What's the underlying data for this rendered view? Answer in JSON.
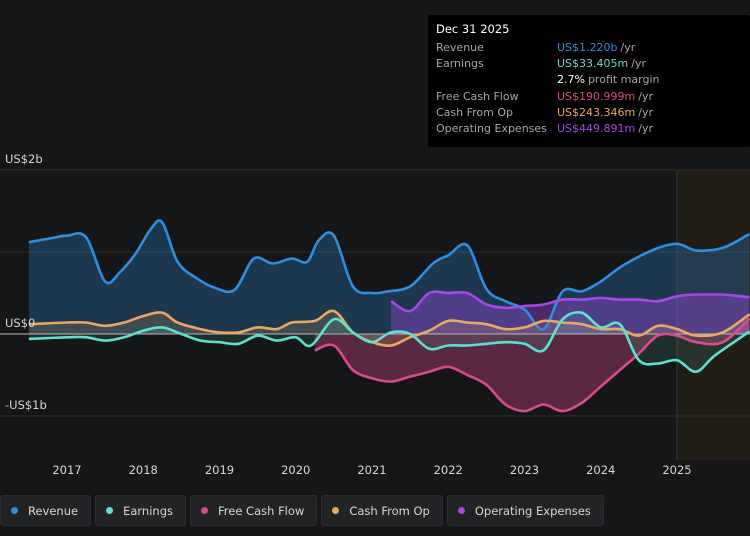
{
  "colors": {
    "revenue": "#2e8fe0",
    "earnings": "#5ee0cf",
    "fcf": "#d94a8e",
    "cfo": "#e8a864",
    "opex": "#a647e8",
    "background": "#151617",
    "forecast_band": "#2a2418"
  },
  "tooltip": {
    "date": "Dec 31 2025",
    "rows": [
      {
        "label": "Revenue",
        "value": "US$1.220b",
        "unit": "/yr",
        "color": "#2e8fe0"
      },
      {
        "label": "Earnings",
        "value": "US$33.405m",
        "unit": "/yr",
        "color": "#5ee0cf"
      },
      {
        "label": "",
        "value": "2.7%",
        "unit": "profit margin",
        "color": "#ffffff"
      },
      {
        "label": "Free Cash Flow",
        "value": "US$190.999m",
        "unit": "/yr",
        "color": "#d94a8e"
      },
      {
        "label": "Cash From Op",
        "value": "US$243.346m",
        "unit": "/yr",
        "color": "#e8a864"
      },
      {
        "label": "Operating Expenses",
        "value": "US$449.891m",
        "unit": "/yr",
        "color": "#a647e8"
      }
    ]
  },
  "legend": [
    {
      "label": "Revenue",
      "color": "#2e8fe0"
    },
    {
      "label": "Earnings",
      "color": "#5ee0cf"
    },
    {
      "label": "Free Cash Flow",
      "color": "#d94a8e"
    },
    {
      "label": "Cash From Op",
      "color": "#e8a864"
    },
    {
      "label": "Operating Expenses",
      "color": "#a647e8"
    }
  ],
  "chart_data": {
    "type": "area",
    "title": "",
    "xlabel": "",
    "ylabel": "",
    "y_tick_labels": [
      "US$2b",
      "US$0",
      "-US$1b"
    ],
    "y_ticks": [
      2,
      0,
      -1
    ],
    "x_tick_labels": [
      "2017",
      "2018",
      "2019",
      "2020",
      "2021",
      "2022",
      "2023",
      "2024",
      "2025"
    ],
    "x_ticks": [
      2017,
      2018,
      2019,
      2020,
      2021,
      2022,
      2023,
      2024,
      2025
    ],
    "xlim": [
      2016.5,
      2025.95
    ],
    "ylim": [
      -1.0,
      1.6
    ],
    "forecast_start": 2025.0,
    "grid": true,
    "legend_position": "bottom-left",
    "units": "US$ billions",
    "series": [
      {
        "name": "Revenue",
        "color": "#2e8fe0",
        "x": [
          2016.5,
          2016.8,
          2017.0,
          2017.25,
          2017.5,
          2017.7,
          2017.9,
          2018.1,
          2018.25,
          2018.45,
          2018.7,
          2018.95,
          2019.2,
          2019.45,
          2019.7,
          2019.95,
          2020.15,
          2020.3,
          2020.5,
          2020.75,
          2021.0,
          2021.2,
          2021.5,
          2021.8,
          2022.0,
          2022.25,
          2022.5,
          2022.75,
          2023.0,
          2023.25,
          2023.5,
          2023.75,
          2024.0,
          2024.3,
          2024.7,
          2025.0,
          2025.25,
          2025.6,
          2025.95
        ],
        "y": [
          1.12,
          1.17,
          1.2,
          1.18,
          0.64,
          0.76,
          0.98,
          1.28,
          1.36,
          0.88,
          0.68,
          0.56,
          0.54,
          0.92,
          0.86,
          0.92,
          0.88,
          1.14,
          1.2,
          0.58,
          0.5,
          0.52,
          0.58,
          0.86,
          0.96,
          1.08,
          0.55,
          0.4,
          0.3,
          0.06,
          0.52,
          0.52,
          0.64,
          0.84,
          1.03,
          1.1,
          1.02,
          1.05,
          1.22
        ]
      },
      {
        "name": "Earnings",
        "color": "#5ee0cf",
        "x": [
          2016.5,
          2017.0,
          2017.25,
          2017.5,
          2017.75,
          2018.0,
          2018.25,
          2018.5,
          2018.75,
          2019.0,
          2019.25,
          2019.5,
          2019.75,
          2020.0,
          2020.2,
          2020.5,
          2020.75,
          2021.0,
          2021.25,
          2021.5,
          2021.75,
          2022.0,
          2022.25,
          2022.5,
          2022.75,
          2023.0,
          2023.25,
          2023.5,
          2023.75,
          2024.0,
          2024.25,
          2024.5,
          2024.75,
          2025.0,
          2025.25,
          2025.5,
          2025.95
        ],
        "y": [
          -0.06,
          -0.04,
          -0.04,
          -0.08,
          -0.04,
          0.04,
          0.08,
          0.0,
          -0.08,
          -0.1,
          -0.12,
          -0.02,
          -0.08,
          -0.04,
          -0.14,
          0.18,
          0.02,
          -0.1,
          0.02,
          0.0,
          -0.18,
          -0.14,
          -0.14,
          -0.12,
          -0.1,
          -0.12,
          -0.2,
          0.18,
          0.26,
          0.08,
          0.12,
          -0.32,
          -0.36,
          -0.32,
          -0.46,
          -0.26,
          0.03
        ]
      },
      {
        "name": "Free Cash Flow",
        "color": "#d94a8e",
        "x": [
          2020.25,
          2020.5,
          2020.75,
          2021.0,
          2021.25,
          2021.5,
          2021.75,
          2022.0,
          2022.25,
          2022.5,
          2022.75,
          2023.0,
          2023.25,
          2023.5,
          2023.75,
          2024.0,
          2024.25,
          2024.5,
          2024.75,
          2025.0,
          2025.25,
          2025.6,
          2025.95
        ],
        "y": [
          -0.2,
          -0.14,
          -0.44,
          -0.54,
          -0.58,
          -0.52,
          -0.46,
          -0.4,
          -0.5,
          -0.62,
          -0.86,
          -0.94,
          -0.86,
          -0.94,
          -0.84,
          -0.64,
          -0.44,
          -0.24,
          -0.02,
          -0.02,
          -0.1,
          -0.1,
          0.19
        ]
      },
      {
        "name": "Cash From Op",
        "color": "#e8a864",
        "x": [
          2016.5,
          2017.0,
          2017.25,
          2017.5,
          2017.75,
          2018.0,
          2018.25,
          2018.45,
          2018.75,
          2019.0,
          2019.25,
          2019.5,
          2019.75,
          2019.95,
          2020.25,
          2020.5,
          2020.75,
          2021.0,
          2021.25,
          2021.5,
          2021.75,
          2022.0,
          2022.25,
          2022.5,
          2022.75,
          2023.0,
          2023.25,
          2023.5,
          2023.75,
          2024.0,
          2024.25,
          2024.5,
          2024.75,
          2025.0,
          2025.25,
          2025.6,
          2025.95
        ],
        "y": [
          0.12,
          0.14,
          0.14,
          0.1,
          0.14,
          0.22,
          0.26,
          0.14,
          0.06,
          0.02,
          0.02,
          0.08,
          0.06,
          0.14,
          0.16,
          0.28,
          0.02,
          -0.1,
          -0.14,
          -0.04,
          0.04,
          0.16,
          0.14,
          0.12,
          0.06,
          0.08,
          0.16,
          0.14,
          0.12,
          0.06,
          0.06,
          -0.02,
          0.1,
          0.06,
          -0.02,
          0.02,
          0.24
        ]
      },
      {
        "name": "Operating Expenses",
        "color": "#a647e8",
        "x": [
          2021.25,
          2021.5,
          2021.75,
          2022.0,
          2022.25,
          2022.5,
          2022.75,
          2023.0,
          2023.25,
          2023.5,
          2023.75,
          2024.0,
          2024.25,
          2024.5,
          2024.75,
          2025.0,
          2025.25,
          2025.6,
          2025.95
        ],
        "y": [
          0.4,
          0.28,
          0.5,
          0.5,
          0.5,
          0.36,
          0.32,
          0.34,
          0.36,
          0.42,
          0.42,
          0.44,
          0.42,
          0.42,
          0.4,
          0.46,
          0.48,
          0.48,
          0.45
        ]
      }
    ]
  }
}
